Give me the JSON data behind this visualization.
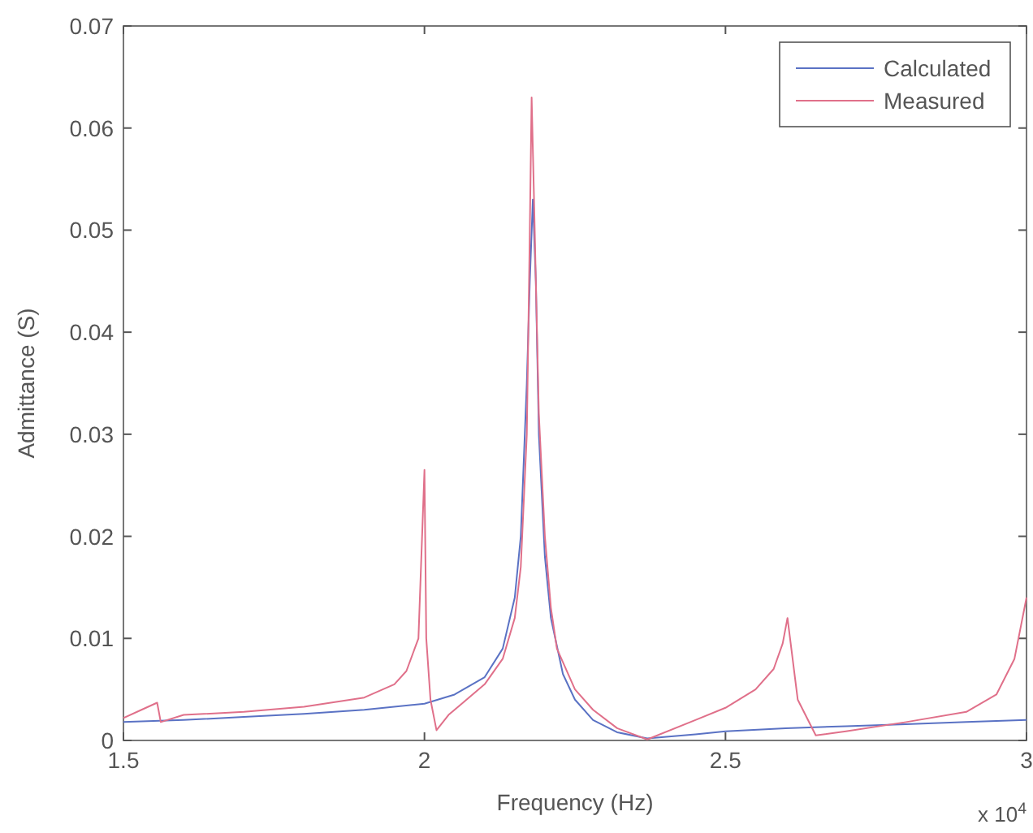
{
  "chart_data": {
    "type": "line",
    "xlabel": "Frequency (Hz)",
    "ylabel": "Admittance (S)",
    "annotations": [
      "x 10$^{4}$"
    ],
    "xlim": [
      1.5,
      3
    ],
    "ylim": [
      0,
      0.07
    ],
    "xticks": [
      1.5,
      2,
      2.5,
      3
    ],
    "yticks": [
      0,
      0.01,
      0.02,
      0.03,
      0.04,
      0.05,
      0.06,
      0.07
    ],
    "grid": false,
    "legend": "top right",
    "line_style": "solid",
    "marker": "none",
    "series": [
      {
        "name": "Calculated",
        "color": "#5a72c4",
        "x": [
          1.5,
          1.6,
          1.7,
          1.8,
          1.9,
          2.0,
          2.05,
          2.1,
          2.13,
          2.15,
          2.16,
          2.17,
          2.175,
          2.18,
          2.185,
          2.19,
          2.2,
          2.21,
          2.23,
          2.25,
          2.28,
          2.32,
          2.37,
          2.45,
          2.5,
          2.6,
          2.7,
          2.8,
          2.9,
          3.0
        ],
        "values": [
          0.0018,
          0.002,
          0.0023,
          0.0026,
          0.003,
          0.0036,
          0.0045,
          0.0062,
          0.009,
          0.014,
          0.02,
          0.035,
          0.045,
          0.053,
          0.045,
          0.03,
          0.018,
          0.012,
          0.0065,
          0.004,
          0.002,
          0.0008,
          0.0002,
          0.0006,
          0.0009,
          0.0012,
          0.0014,
          0.0016,
          0.0018,
          0.002
        ]
      },
      {
        "name": "Measured",
        "color": "#e0708a",
        "x": [
          1.5,
          1.53,
          1.556,
          1.562,
          1.6,
          1.7,
          1.8,
          1.9,
          1.95,
          1.97,
          1.99,
          2.0,
          2.003,
          2.01,
          2.02,
          2.04,
          2.06,
          2.1,
          2.13,
          2.15,
          2.16,
          2.17,
          2.175,
          2.178,
          2.182,
          2.185,
          2.19,
          2.2,
          2.21,
          2.22,
          2.25,
          2.28,
          2.32,
          2.37,
          2.45,
          2.5,
          2.55,
          2.58,
          2.595,
          2.603,
          2.62,
          2.65,
          2.7,
          2.8,
          2.9,
          2.95,
          2.98,
          3.0
        ],
        "values": [
          0.0022,
          0.003,
          0.0037,
          0.0018,
          0.0025,
          0.0028,
          0.0033,
          0.0042,
          0.0055,
          0.0068,
          0.01,
          0.0265,
          0.01,
          0.004,
          0.001,
          0.0025,
          0.0035,
          0.0055,
          0.008,
          0.012,
          0.017,
          0.03,
          0.05,
          0.063,
          0.053,
          0.045,
          0.032,
          0.02,
          0.013,
          0.009,
          0.005,
          0.003,
          0.0012,
          0.0001,
          0.002,
          0.0032,
          0.005,
          0.007,
          0.0095,
          0.012,
          0.004,
          0.0005,
          0.0009,
          0.0018,
          0.0028,
          0.0045,
          0.008,
          0.014
        ]
      }
    ]
  }
}
